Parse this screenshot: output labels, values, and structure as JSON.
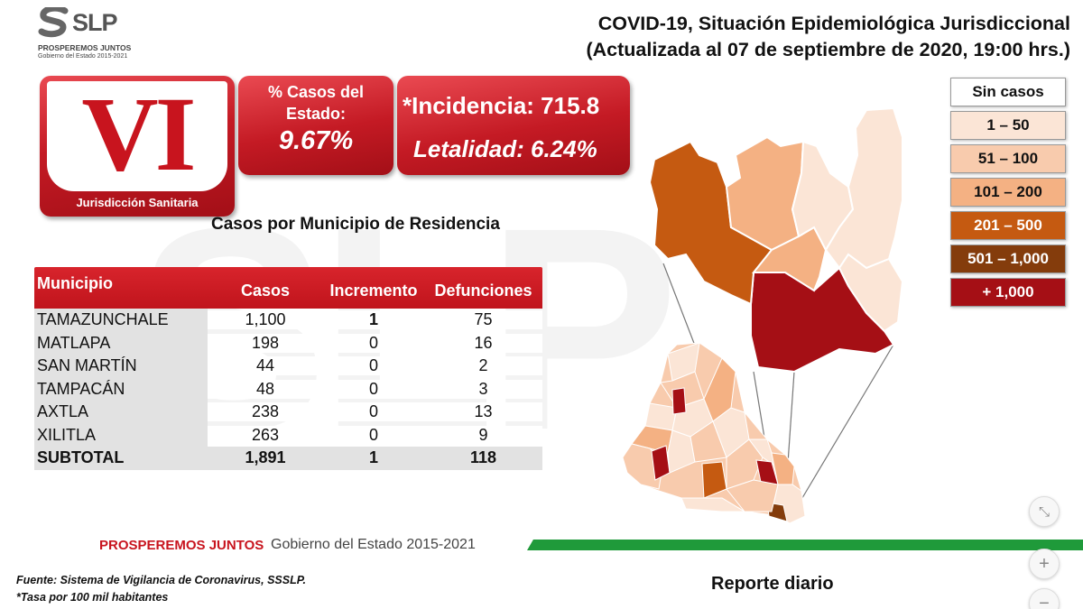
{
  "watermark": "SLP",
  "logo": {
    "text": "SLP",
    "tagline": "PROSPEREMOS JUNTOS",
    "sub": "Gobierno del Estado 2015-2021"
  },
  "title": {
    "line1": "COVID-19, Situación Epidemiológica Jurisdiccional",
    "line2": "(Actualizada al 07 de septiembre de 2020, 19:00 hrs.)"
  },
  "jurisdiction": {
    "numeral": "VI",
    "label": "Jurisdicción Sanitaria"
  },
  "percent": {
    "label": "% Casos del Estado:",
    "value": "9.67%"
  },
  "incidence": {
    "text": "*Incidencia: 715.8",
    "letalidad": "Letalidad: 6.24%"
  },
  "subtitle": "Casos por Municipio  de Residencia",
  "table": {
    "headers": [
      "Municipio",
      "Casos",
      "Incremento",
      "Defunciones"
    ],
    "rows": [
      {
        "municipio": "TAMAZUNCHALE",
        "casos": "1,100",
        "incremento": "1",
        "defunciones": "75"
      },
      {
        "municipio": "MATLAPA",
        "casos": "198",
        "incremento": "0",
        "defunciones": "16"
      },
      {
        "municipio": "SAN MARTÍN",
        "casos": "44",
        "incremento": "0",
        "defunciones": "2"
      },
      {
        "municipio": "TAMPACÁN",
        "casos": "48",
        "incremento": "0",
        "defunciones": "3"
      },
      {
        "municipio": "AXTLA",
        "casos": "238",
        "incremento": "0",
        "defunciones": "13"
      },
      {
        "municipio": "XILITLA",
        "casos": "263",
        "incremento": "0",
        "defunciones": "9"
      }
    ],
    "subtotal": {
      "municipio": "SUBTOTAL",
      "casos": "1,891",
      "incremento": "1",
      "defunciones": "118"
    }
  },
  "legend": [
    {
      "label": "Sin casos",
      "color": "#ffffff",
      "text_color": "#111111"
    },
    {
      "label": "1 – 50",
      "color": "#fbe5d6",
      "text_color": "#111111"
    },
    {
      "label": "51 – 100",
      "color": "#f8cbad",
      "text_color": "#111111"
    },
    {
      "label": "101 – 200",
      "color": "#f4b183",
      "text_color": "#111111"
    },
    {
      "label": "201 – 500",
      "color": "#c55a11",
      "text_color": "#ffffff"
    },
    {
      "label": "501 – 1,000",
      "color": "#843c0c",
      "text_color": "#ffffff"
    },
    {
      "label": "+ 1,000",
      "color": "#a50f15",
      "text_color": "#ffffff"
    }
  ],
  "footer": {
    "strong": "PROSPEREMOS JUNTOS",
    "light": "Gobierno del Estado 2015-2021",
    "source": "Fuente: Sistema de Vigilancia de Coronavirus, SSSLP.",
    "note": "*Tasa por 100 mil habitantes",
    "report": "Reporte diario"
  },
  "controls": {
    "collapse": "⤡",
    "zoom_in": "+",
    "zoom_out": "−"
  }
}
